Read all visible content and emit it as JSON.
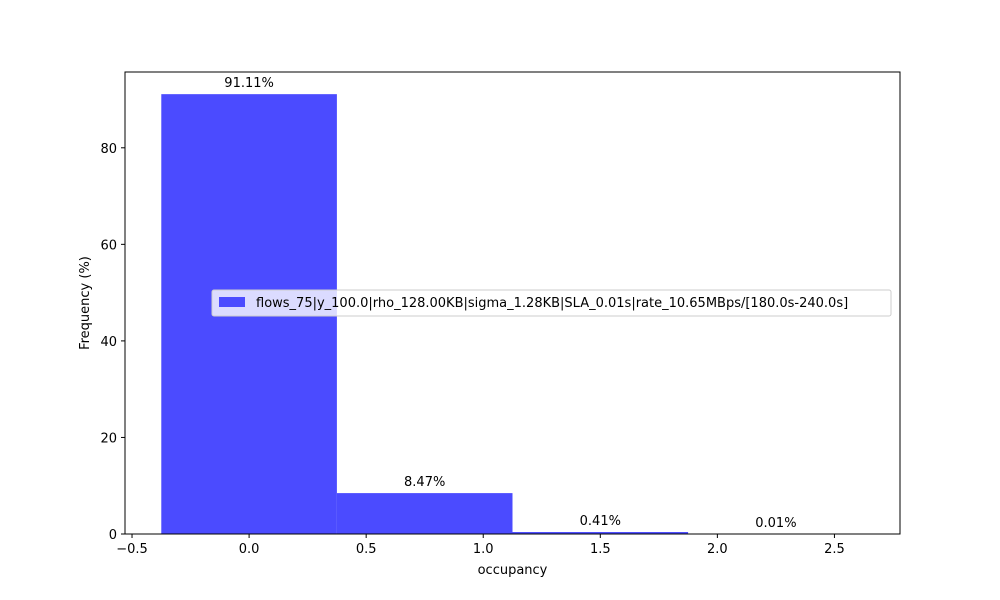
{
  "chart_data": {
    "type": "bar",
    "x": [
      0.0,
      0.75,
      1.5,
      2.25
    ],
    "bar_width": 0.75,
    "values": [
      91.11,
      8.47,
      0.41,
      0.01
    ],
    "data_labels": [
      "91.11%",
      "8.47%",
      "0.41%",
      "0.01%"
    ],
    "xlabel": "occupancy",
    "ylabel": "Frequency (%)",
    "xlim": [
      -0.53,
      2.78
    ],
    "ylim": [
      0,
      95.7
    ],
    "xticks": [
      -0.5,
      0.0,
      0.5,
      1.0,
      1.5,
      2.0,
      2.5
    ],
    "xtick_labels": [
      "−0.5",
      "0.0",
      "0.5",
      "1.0",
      "1.5",
      "2.0",
      "2.5"
    ],
    "yticks": [
      0,
      20,
      40,
      60,
      80
    ],
    "ytick_labels": [
      "0",
      "20",
      "40",
      "60",
      "80"
    ],
    "grid": false,
    "legend_position": "center-right",
    "series": [
      {
        "name": "flows_75|y_100.0|rho_128.00KB|sigma_1.28KB|SLA_0.01s|rate_10.65MBps/[180.0s-240.0s]",
        "color": "#4b4bff"
      }
    ]
  }
}
